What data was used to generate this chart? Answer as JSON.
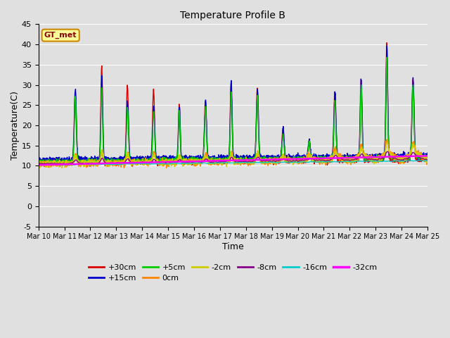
{
  "title": "Temperature Profile B",
  "xlabel": "Time",
  "ylabel": "Temperature(C)",
  "ylim": [
    -5,
    45
  ],
  "yticks": [
    -5,
    0,
    5,
    10,
    15,
    20,
    25,
    30,
    35,
    40,
    45
  ],
  "x_labels": [
    "Mar 10",
    "Mar 11",
    "Mar 12",
    "Mar 13",
    "Mar 14",
    "Mar 15",
    "Mar 16",
    "Mar 17",
    "Mar 18",
    "Mar 19",
    "Mar 20",
    "Mar 21",
    "Mar 22",
    "Mar 23",
    "Mar 24",
    "Mar 25"
  ],
  "series_labels": [
    "+30cm",
    "+15cm",
    "+5cm",
    "0cm",
    "-2cm",
    "-8cm",
    "-16cm",
    "-32cm"
  ],
  "series_colors": [
    "#dd0000",
    "#0000cc",
    "#00cc00",
    "#ff8800",
    "#cccc00",
    "#880088",
    "#00cccc",
    "#ff00ff"
  ],
  "bg_color": "#e0e0e0",
  "annotation_text": "GT_met",
  "annotation_bg": "#ffff99",
  "annotation_border": "#cc8800"
}
